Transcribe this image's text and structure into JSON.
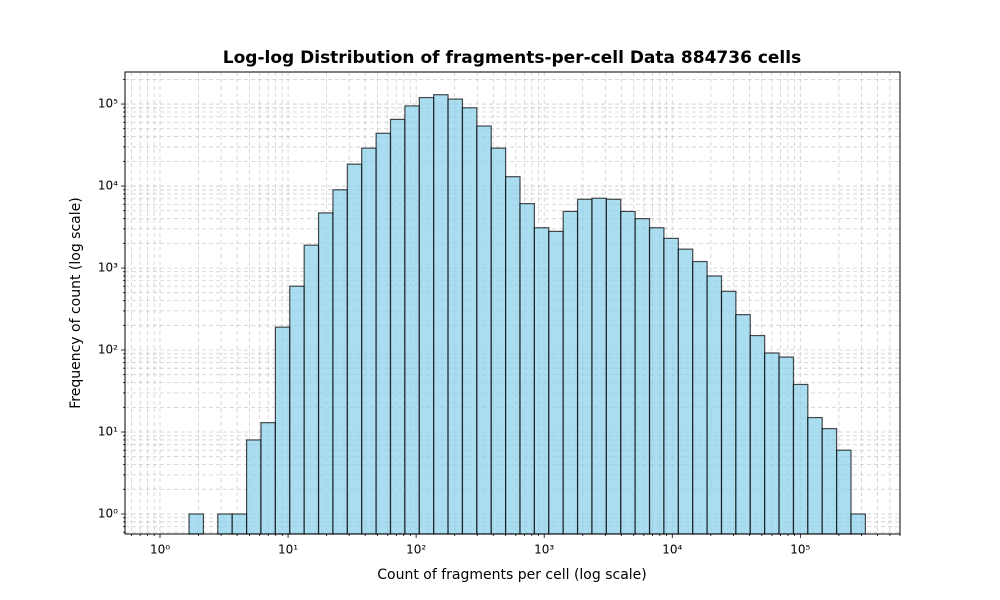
{
  "chart_data": {
    "type": "histogram",
    "title": "Log-log Distribution of fragments-per-cell Data 884736 cells",
    "x_label": "Count of fragments per cell (log scale)",
    "y_label": "Frequency of count (log scale)",
    "xscale": "log",
    "yscale": "log",
    "grid": true,
    "color": "#87ceeb",
    "edgecolor": "#000000",
    "alpha": 0.7,
    "bins": [
      1.685,
      2.183,
      2.827,
      3.662,
      4.745,
      6.144,
      7.958,
      10.31,
      13.36,
      17.3,
      22.41,
      29.02,
      37.58,
      48.69,
      63.07,
      81.7,
      105.8,
      137.1,
      177.5,
      229.9,
      297.9,
      385.8,
      499.6,
      647.3,
      838.4,
      1086,
      1407,
      1822,
      2360,
      3057,
      3960,
      5130,
      6644,
      8606,
      11150,
      14440,
      18700,
      24230,
      31380,
      40640,
      52650,
      68200,
      88350,
      114400,
      148200,
      192000,
      248700,
      322100
    ],
    "values": [
      1,
      0,
      1,
      1,
      8,
      13,
      190,
      600,
      1900,
      4700,
      9000,
      18500,
      29000,
      44000,
      65000,
      95000,
      120000,
      130000,
      115000,
      90000,
      54000,
      29000,
      13000,
      6100,
      3100,
      2800,
      4900,
      6900,
      7100,
      6900,
      4900,
      4000,
      3100,
      2300,
      1700,
      1200,
      800,
      520,
      270,
      150,
      92,
      82,
      38,
      15,
      11,
      6,
      1
    ],
    "xlim": [
      0.533,
      600000
    ],
    "ylim": [
      0.57,
      246000
    ],
    "xticks": [
      {
        "value": 1,
        "label": "10⁰"
      },
      {
        "value": 10,
        "label": "10¹"
      },
      {
        "value": 100,
        "label": "10²"
      },
      {
        "value": 1000,
        "label": "10³"
      },
      {
        "value": 10000,
        "label": "10⁴"
      },
      {
        "value": 100000,
        "label": "10⁵"
      }
    ],
    "yticks": [
      {
        "value": 1,
        "label": "10⁰"
      },
      {
        "value": 10,
        "label": "10¹"
      },
      {
        "value": 100,
        "label": "10²"
      },
      {
        "value": 1000,
        "label": "10³"
      },
      {
        "value": 10000,
        "label": "10⁴"
      },
      {
        "value": 100000,
        "label": "10⁵"
      }
    ],
    "xminorticks": [
      0.6,
      0.7,
      0.8,
      0.9,
      2,
      3,
      4,
      5,
      6,
      7,
      8,
      9,
      20,
      30,
      40,
      50,
      60,
      70,
      80,
      90,
      200,
      300,
      400,
      500,
      600,
      700,
      800,
      900,
      2000,
      3000,
      4000,
      5000,
      6000,
      7000,
      8000,
      9000,
      20000,
      30000,
      40000,
      50000,
      60000,
      70000,
      80000,
      90000,
      200000,
      300000,
      400000,
      500000,
      600000
    ],
    "yminorticks": [
      0.6,
      0.7,
      0.8,
      0.9,
      2,
      3,
      4,
      5,
      6,
      7,
      8,
      9,
      20,
      30,
      40,
      50,
      60,
      70,
      80,
      90,
      200,
      300,
      400,
      500,
      600,
      700,
      800,
      900,
      2000,
      3000,
      4000,
      5000,
      6000,
      7000,
      8000,
      9000,
      20000,
      30000,
      40000,
      50000,
      60000,
      70000,
      80000,
      90000,
      200000
    ]
  }
}
